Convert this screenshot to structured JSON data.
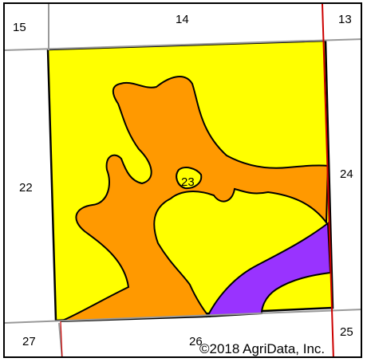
{
  "map": {
    "sections": {
      "n15": "15",
      "n14": "14",
      "n13": "13",
      "n22": "22",
      "n23": "23",
      "n24": "24",
      "n27": "27",
      "n26": "26",
      "n25": "25"
    },
    "copyright": "©2018 AgriData, Inc.",
    "colors": {
      "soil_yellow": "#ffff00",
      "soil_orange": "#ff9900",
      "soil_purple": "#9933ff",
      "section_line": "#999999",
      "road_line": "#cc0000",
      "boundary": "#000000"
    }
  }
}
